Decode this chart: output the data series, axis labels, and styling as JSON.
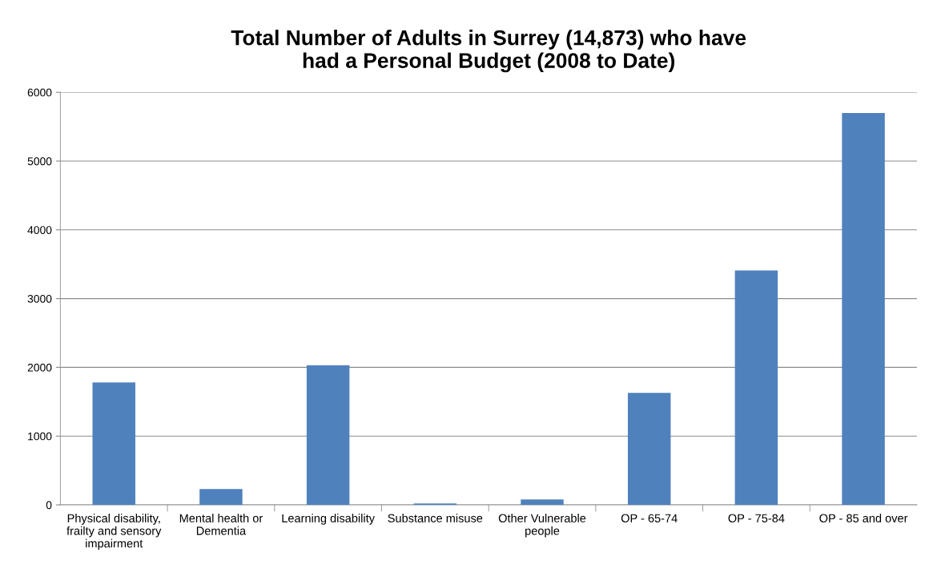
{
  "chart_data": {
    "type": "bar",
    "title": "Total Number of Adults in Surrey (14,873) who have\nhad a Personal Budget (2008 to Date)",
    "categories": [
      "Physical disability,\nfrailty and sensory\nimpairment",
      "Mental health or\nDementia",
      "Learning disability",
      "Substance misuse",
      "Other Vulnerable\npeople",
      "OP - 65-74",
      "OP - 75-84",
      "OP - 85 and over"
    ],
    "values": [
      1780,
      230,
      2030,
      20,
      80,
      1630,
      3410,
      5700
    ],
    "color": "#4f81bd",
    "ylim": [
      0,
      6000
    ],
    "yticks": [
      0,
      1000,
      2000,
      3000,
      4000,
      5000,
      6000
    ],
    "grid": "y",
    "legend": false
  }
}
